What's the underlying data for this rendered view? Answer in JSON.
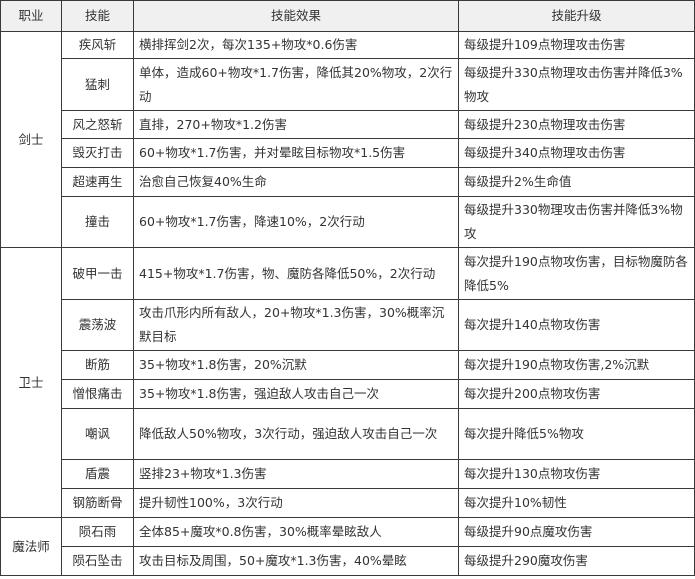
{
  "headers": [
    "职业",
    "技能",
    "技能效果",
    "技能升级"
  ],
  "groups": [
    {
      "class": "剑士",
      "skills": [
        {
          "name": "疾风斩",
          "effect": "横排挥剑2次，每次135+物攻*0.6伤害",
          "upgrade": "每级提升109点物理攻击伤害"
        },
        {
          "name": "猛刺",
          "effect": "单体，造成60+物攻*1.7伤害，降低其20%物攻，2次行动",
          "upgrade": "每级提升330点物理攻击伤害并降低3%物攻"
        },
        {
          "name": "风之怒斩",
          "effect": "直排，270+物攻*1.2伤害",
          "upgrade": "每级提升230点物理攻击伤害"
        },
        {
          "name": "毁灭打击",
          "effect": "60+物攻*1.7伤害，并对晕眩目标物攻*1.5伤害",
          "upgrade": "每级提升340点物理攻击伤害"
        },
        {
          "name": "超速再生",
          "effect": "治愈自己恢复40%生命",
          "upgrade": "每级提升2%生命值"
        },
        {
          "name": "撞击",
          "effect": "60+物攻*1.7伤害，降速10%，2次行动",
          "upgrade": "每级提升330物理攻击伤害并降低3%物攻"
        }
      ]
    },
    {
      "class": "卫士",
      "skills": [
        {
          "name": "破甲一击",
          "effect": "415+物攻*1.7伤害，物、魔防各降低50%，2次行动",
          "upgrade": "每次提升190点物攻伤害，目标物魔防各降低5%"
        },
        {
          "name": "震荡波",
          "effect": "攻击爪形内所有敌人，20+物攻*1.3伤害，30%概率沉默目标",
          "upgrade": "每次提升140点物攻伤害"
        },
        {
          "name": "断筋",
          "effect": "35+物攻*1.8伤害，20%沉默",
          "upgrade": "每次提升190点物攻伤害,2%沉默"
        },
        {
          "name": "憎恨痛击",
          "effect": "35+物攻*1.8伤害，强迫敌人攻击自己一次",
          "upgrade": "每次提升200点物攻伤害"
        },
        {
          "name": "嘲讽",
          "effect": "降低敌人50%物攻，3次行动，强迫敌人攻击自己一次",
          "upgrade": "每次提升降低5%物攻"
        },
        {
          "name": "盾震",
          "effect": "竖排23+物攻*1.3伤害",
          "upgrade": "每次提升130点物攻伤害"
        },
        {
          "name": "钢筋断骨",
          "effect": "提升韧性100%，3次行动",
          "upgrade": "每次提升10%韧性"
        }
      ]
    },
    {
      "class": "魔法师",
      "skills": [
        {
          "name": "陨石雨",
          "effect": "全体85+魔攻*0.8伤害，30%概率晕眩敌人",
          "upgrade": "每级提升90点魔攻伤害"
        },
        {
          "name": "陨石坠击",
          "effect": "攻击目标及周围，50+魔攻*1.3伤害，40%晕眩",
          "upgrade": "每级提升290魔攻伤害"
        }
      ]
    }
  ]
}
